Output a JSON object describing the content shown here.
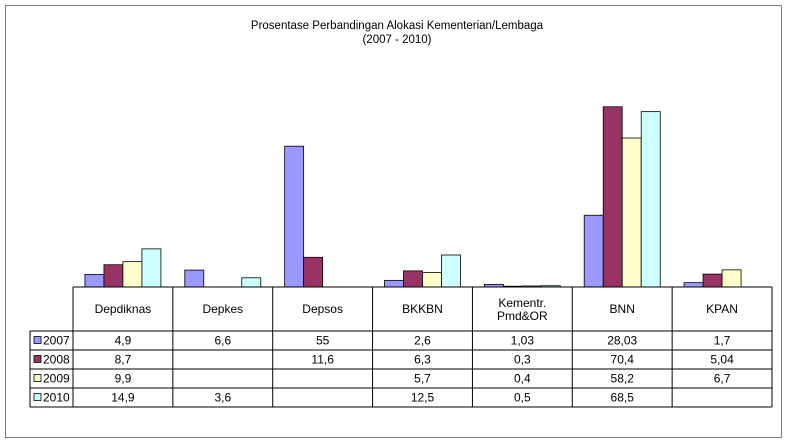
{
  "chart_data": {
    "type": "bar",
    "title": "Prosentase Perbandingan Alokasi Kementerian/Lembaga",
    "subtitle": "(2007 - 2010)",
    "categories": [
      "Depdiknas",
      "Depkes",
      "Depsos",
      "BKKBN",
      "Kementr. Pmd&OR",
      "BNN",
      "KPAN"
    ],
    "categories_display": [
      [
        "Depdiknas"
      ],
      [
        "Depkes"
      ],
      [
        "Depsos"
      ],
      [
        "BKKBN"
      ],
      [
        "Kementr.",
        "Pmd&OR"
      ],
      [
        "BNN"
      ],
      [
        "KPAN"
      ]
    ],
    "ylim": [
      0,
      75
    ],
    "grid": false,
    "legend": "data-table-left",
    "series": [
      {
        "name": "2007",
        "color": "#9999ff",
        "values": [
          4.9,
          6.6,
          55,
          2.6,
          1.03,
          28.03,
          1.7
        ],
        "labels": [
          "4,9",
          "6,6",
          "55",
          "2,6",
          "1,03",
          "28,03",
          "1,7"
        ]
      },
      {
        "name": "2008",
        "color": "#993366",
        "values": [
          8.7,
          null,
          11.6,
          6.3,
          0.3,
          70.4,
          5.04
        ],
        "labels": [
          "8,7",
          "",
          "11,6",
          "6,3",
          "0,3",
          "70,4",
          "5,04"
        ]
      },
      {
        "name": "2009",
        "color": "#ffffcc",
        "values": [
          9.9,
          null,
          null,
          5.7,
          0.4,
          58.2,
          6.7
        ],
        "labels": [
          "9,9",
          "",
          "",
          "5,7",
          "0,4",
          "58,2",
          "6,7"
        ]
      },
      {
        "name": "2010",
        "color": "#ccffff",
        "values": [
          14.9,
          3.6,
          null,
          12.5,
          0.5,
          68.5,
          null
        ],
        "labels": [
          "14,9",
          "3,6",
          "",
          "12,5",
          "0,5",
          "68,5",
          ""
        ]
      }
    ]
  }
}
